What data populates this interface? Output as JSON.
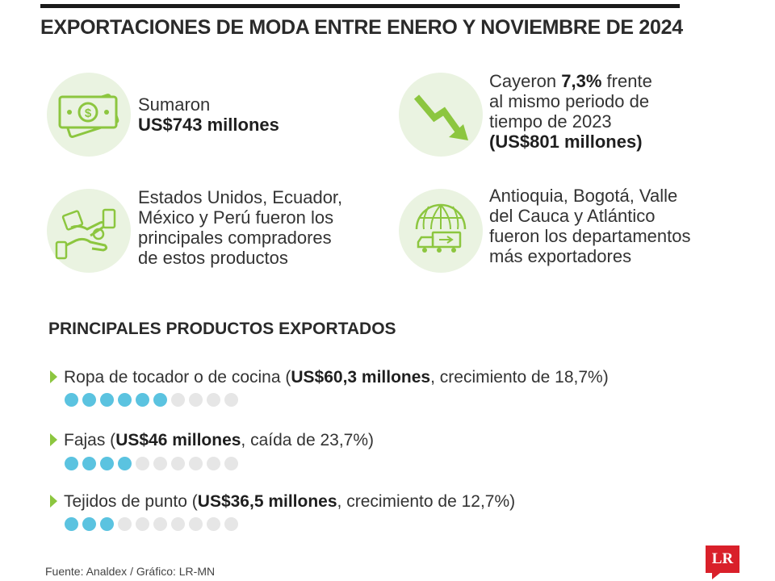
{
  "title": "EXPORTACIONES DE MODA ENTRE ENERO Y NOVIEMBRE DE 2024",
  "stats": {
    "total": {
      "pre": "Sumaron",
      "bold": "US$743 millones"
    },
    "drop": {
      "l1_pre": "Cayeron ",
      "l1_bold": "7,3%",
      "l1_post": " frente",
      "l2": "al mismo periodo de",
      "l3": "tiempo de 2023",
      "l4_bold": "(US$801 millones)"
    },
    "buyers": {
      "l1": "Estados Unidos, Ecuador,",
      "l2": "México y Perú fueron los",
      "l3": "principales compradores",
      "l4": "de estos productos"
    },
    "regions": {
      "l1": "Antioquia, Bogotá, Valle",
      "l2": "del Cauca y Atlántico",
      "l3": "fueron los departamentos",
      "l4": "más exportadores"
    }
  },
  "section_title": "PRINCIPALES PRODUCTOS EXPORTADOS",
  "products": [
    {
      "name": "Ropa de tocador o de cocina (",
      "value": "US$60,3 millones",
      "change": ", crecimiento de 18,7%)",
      "dots_filled": 6,
      "dots_total": 10
    },
    {
      "name": "Fajas (",
      "value": "US$46 millones",
      "change": ", caída de 23,7%)",
      "dots_filled": 4,
      "dots_total": 10
    },
    {
      "name": "Tejidos de punto (",
      "value": "US$36,5 millones",
      "change": ", crecimiento de 12,7%)",
      "dots_filled": 3,
      "dots_total": 10
    }
  ],
  "source": "Fuente: Analdex / Gráfico: LR-MN",
  "logo": "LR",
  "icons": {
    "money": "money-icon",
    "trend_down": "trend-down-arrow-icon",
    "handshake": "hands-exchange-icon",
    "globe_truck": "globe-truck-icon"
  },
  "colors": {
    "icon_bg": "#eaf3e1",
    "icon_green": "#8cc63f",
    "dot_on": "#5bc3e0",
    "dot_off": "#e6e6e6",
    "logo_red": "#d9202a"
  }
}
